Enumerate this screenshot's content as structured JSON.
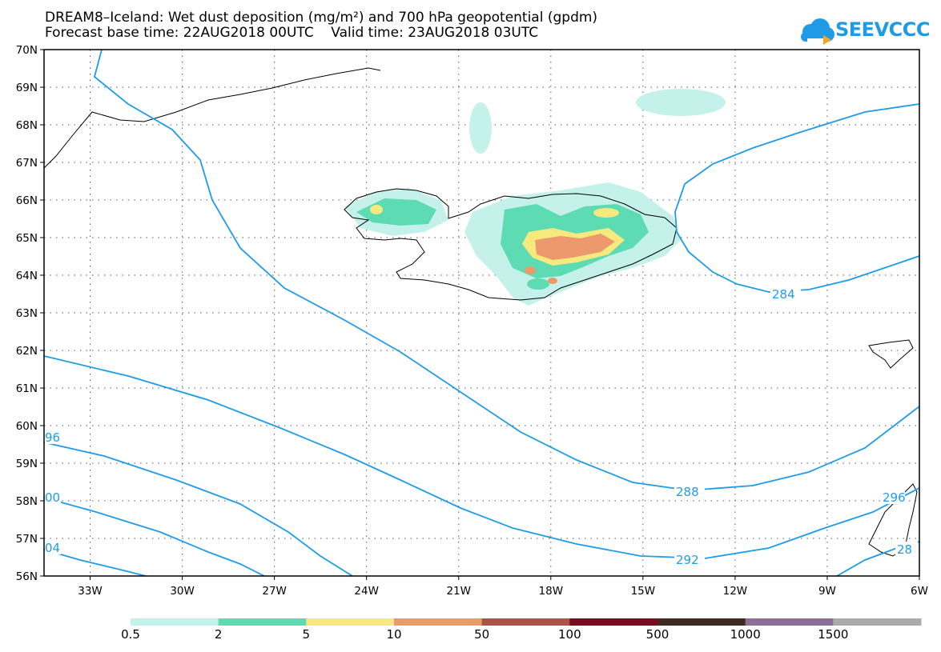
{
  "title": {
    "line1": "DREAM8–Iceland: Wet dust deposition (mg/m²) and 700 hPa geopotential (gpdm)",
    "line2": "Forecast base time: 22AUG2018 00UTC    Valid time: 23AUG2018 03UTC"
  },
  "logo": {
    "text": "SEEVCCC",
    "icon": "cloud-icon",
    "color": "#1f9be6"
  },
  "map": {
    "lon_range": [
      -34.5,
      -6
    ],
    "lat_range": [
      56,
      70
    ],
    "lat_ticks": [
      "70N",
      "69N",
      "68N",
      "67N",
      "66N",
      "65N",
      "64N",
      "63N",
      "62N",
      "61N",
      "60N",
      "59N",
      "58N",
      "57N",
      "56N"
    ],
    "lon_ticks": [
      "33W",
      "30W",
      "27W",
      "24W",
      "21W",
      "18W",
      "15W",
      "12W",
      "9W",
      "6W"
    ],
    "gridlines": "dotted",
    "contour_color": "#1e9ce8",
    "contour_labels": [
      "284",
      "288",
      "292",
      "96",
      "00",
      "04",
      "296",
      "28"
    ]
  },
  "colorbar": {
    "levels": [
      "0.5",
      "2",
      "5",
      "10",
      "50",
      "100",
      "500",
      "1000",
      "1500"
    ],
    "colors": [
      "#c4f2ea",
      "#5ddbb2",
      "#f6ea7e",
      "#ec9a6d",
      "#b05049",
      "#7e0a22",
      "#3e2a1e",
      "#8c6f98",
      "#aaaaaa"
    ]
  }
}
